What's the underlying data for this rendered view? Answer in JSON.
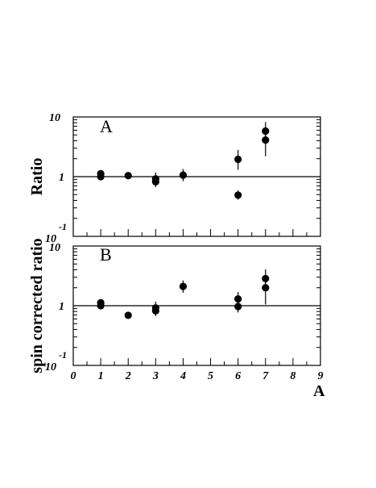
{
  "chart_data": [
    {
      "type": "scatter",
      "panel_label": "A",
      "ylabel": "Ratio",
      "yscale": "log",
      "ylim": [
        0.1,
        10
      ],
      "y_tick_labels": [
        "10",
        "1",
        "-1",
        "10"
      ],
      "xlim": [
        0,
        9
      ],
      "reference_line_y": 1,
      "points": [
        {
          "x": 1,
          "y": 1.12,
          "err_low": 0.07,
          "err_high": 0.07
        },
        {
          "x": 1,
          "y": 1.0,
          "err_low": 0.07,
          "err_high": 0.07
        },
        {
          "x": 2,
          "y": 1.04,
          "err_low": 0.06,
          "err_high": 0.06
        },
        {
          "x": 3,
          "y": 0.92,
          "err_low": 0.18,
          "err_high": 0.25
        },
        {
          "x": 3,
          "y": 0.82,
          "err_low": 0.15,
          "err_high": 0.2
        },
        {
          "x": 4,
          "y": 1.06,
          "err_low": 0.22,
          "err_high": 0.28
        },
        {
          "x": 6,
          "y": 1.95,
          "err_low": 0.65,
          "err_high": 0.85
        },
        {
          "x": 6,
          "y": 0.49,
          "err_low": 0.08,
          "err_high": 0.1
        },
        {
          "x": 7,
          "y": 5.8,
          "err_low": 1.6,
          "err_high": 2.4
        },
        {
          "x": 7,
          "y": 4.1,
          "err_low": 1.9,
          "err_high": 2.0
        }
      ]
    },
    {
      "type": "scatter",
      "panel_label": "B",
      "ylabel": "spin corrected ratio",
      "yscale": "log",
      "ylim": [
        0.1,
        10
      ],
      "y_tick_labels": [
        "10",
        "1",
        "-1",
        "10"
      ],
      "xlim": [
        0,
        9
      ],
      "x_tick_labels": [
        "0",
        "1",
        "2",
        "3",
        "4",
        "5",
        "6",
        "7",
        "8",
        "9"
      ],
      "xlabel": "A",
      "reference_line_y": 1,
      "points": [
        {
          "x": 1,
          "y": 1.12,
          "err_low": 0.07,
          "err_high": 0.07
        },
        {
          "x": 1,
          "y": 1.0,
          "err_low": 0.07,
          "err_high": 0.07
        },
        {
          "x": 2,
          "y": 0.69,
          "err_low": 0.05,
          "err_high": 0.05
        },
        {
          "x": 3,
          "y": 0.92,
          "err_low": 0.18,
          "err_high": 0.25
        },
        {
          "x": 3,
          "y": 0.82,
          "err_low": 0.15,
          "err_high": 0.2
        },
        {
          "x": 4,
          "y": 2.1,
          "err_low": 0.45,
          "err_high": 0.55
        },
        {
          "x": 6,
          "y": 1.3,
          "err_low": 0.3,
          "err_high": 0.4
        },
        {
          "x": 6,
          "y": 0.97,
          "err_low": 0.2,
          "err_high": 0.25
        },
        {
          "x": 7,
          "y": 2.85,
          "err_low": 0.75,
          "err_high": 1.2
        },
        {
          "x": 7,
          "y": 2.0,
          "err_low": 0.95,
          "err_high": 0.9
        }
      ]
    }
  ]
}
